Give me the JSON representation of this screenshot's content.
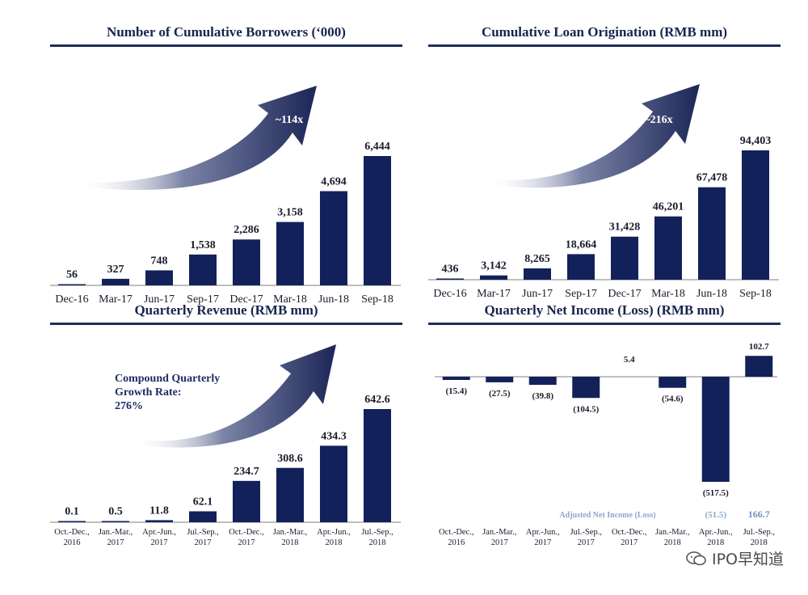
{
  "top_strip_text": "",
  "colors": {
    "bar": "#13215a",
    "navy_text": "#16254d",
    "adjusted": "#8ea6cc"
  },
  "watermark": {
    "text": "IPO早知道",
    "icon": "wechat-bubble-icon"
  },
  "chart_data": [
    {
      "type": "bar",
      "title": "Number of Cumulative Borrowers (‘000)",
      "categories": [
        "Dec-16",
        "Mar-17",
        "Jun-17",
        "Sep-17",
        "Dec-17",
        "Mar-18",
        "Jun-18",
        "Sep-18"
      ],
      "values": [
        56,
        327,
        748,
        1538,
        2286,
        3158,
        4694,
        6444
      ],
      "value_labels": [
        "56",
        "327",
        "748",
        "1,538",
        "2,286",
        "3,158",
        "4,694",
        "6,444"
      ],
      "ylim": [
        0,
        6444
      ],
      "annotation": "~114x"
    },
    {
      "type": "bar",
      "title": "Cumulative Loan Origination (RMB mm)",
      "categories": [
        "Dec-16",
        "Mar-17",
        "Jun-17",
        "Sep-17",
        "Dec-17",
        "Mar-18",
        "Jun-18",
        "Sep-18"
      ],
      "values": [
        436,
        3142,
        8265,
        18664,
        31428,
        46201,
        67478,
        94403
      ],
      "value_labels": [
        "436",
        "3,142",
        "8,265",
        "18,664",
        "31,428",
        "46,201",
        "67,478",
        "94,403"
      ],
      "ylim": [
        0,
        94403
      ],
      "annotation": "~216x"
    },
    {
      "type": "bar",
      "title": "Quarterly Revenue (RMB mm)",
      "categories": [
        [
          "Oct.-Dec.,",
          "2016"
        ],
        [
          "Jan.-Mar.,",
          "2017"
        ],
        [
          "Apr.-Jun.,",
          "2017"
        ],
        [
          "Jul.-Sep.,",
          "2017"
        ],
        [
          "Oct.-Dec.,",
          "2017"
        ],
        [
          "Jan.-Mar.,",
          "2018"
        ],
        [
          "Apr.-Jun.,",
          "2018"
        ],
        [
          "Jul.-Sep.,",
          "2018"
        ]
      ],
      "values": [
        0.1,
        0.5,
        11.8,
        62.1,
        234.7,
        308.6,
        434.3,
        642.6
      ],
      "value_labels": [
        "0.1",
        "0.5",
        "11.8",
        "62.1",
        "234.7",
        "308.6",
        "434.3",
        "642.6"
      ],
      "ylim": [
        0,
        642.6
      ],
      "annotation_lines": [
        "Compound Quarterly",
        "Growth Rate:",
        "276%"
      ]
    },
    {
      "type": "bar",
      "title": "Quarterly Net Income (Loss) (RMB mm)",
      "categories": [
        [
          "Oct.-Dec.,",
          "2016"
        ],
        [
          "Jan.-Mar.,",
          "2017"
        ],
        [
          "Apr.-Jun.,",
          "2017"
        ],
        [
          "Jul.-Sep.,",
          "2017"
        ],
        [
          "Oct.-Dec.,",
          "2017"
        ],
        [
          "Jan.-Mar.,",
          "2018"
        ],
        [
          "Apr.-Jun.,",
          "2018"
        ],
        [
          "Jul.-Sep.,",
          "2018"
        ]
      ],
      "values": [
        -15.4,
        -27.5,
        -39.8,
        -104.5,
        5.4,
        -54.6,
        -517.5,
        102.7
      ],
      "value_labels": [
        "(15.4)",
        "(27.5)",
        "(39.8)",
        "(104.5)",
        "5.4",
        "(54.6)",
        "(517.5)",
        "102.7"
      ],
      "ylim": [
        -517.5,
        102.7
      ],
      "adjusted_net_income": {
        "label": "Adjusted Net Income (Loss)",
        "values": [
          "(51.5)",
          "166.7"
        ],
        "categories": [
          [
            "Apr.-Jun.,",
            "2018"
          ],
          [
            "Jul.-Sep.,",
            "2018"
          ]
        ]
      }
    }
  ]
}
